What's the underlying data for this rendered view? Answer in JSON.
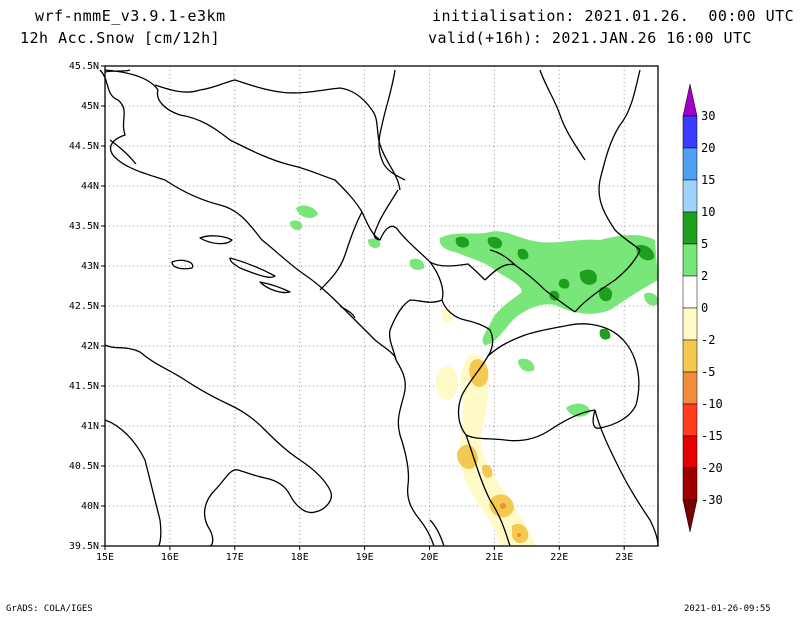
{
  "header": {
    "model": "wrf-nmmE_v3.9.1-e3km",
    "field": "12h Acc.Snow [cm/12h]",
    "init": "initialisation: 2021.01.26.  00:00 UTC",
    "valid": "valid(+16h): 2021.JAN.26 16:00 UTC"
  },
  "footer": {
    "left": "GrADS: COLA/IGES",
    "right": "2021-01-26-09:55"
  },
  "map": {
    "lat_labels": [
      "45.5N",
      "45N",
      "44.5N",
      "44N",
      "43.5N",
      "43N",
      "42.5N",
      "42N",
      "41.5N",
      "41N",
      "40.5N",
      "40N",
      "39.5N"
    ],
    "lon_labels": [
      "15E",
      "16E",
      "17E",
      "18E",
      "19E",
      "20E",
      "21E",
      "22E",
      "23E"
    ]
  },
  "colorbar": {
    "labels": [
      "30",
      "20",
      "15",
      "10",
      "5",
      "2",
      "0",
      "-2",
      "-5",
      "-10",
      "-15",
      "-20",
      "-30"
    ],
    "colors": [
      "#a000c8",
      "#3c3cff",
      "#509ff0",
      "#a0d2ff",
      "#1ea01e",
      "#78e678",
      "#ffffff",
      "#fffac8",
      "#f5c850",
      "#f08c3c",
      "#ff3c1e",
      "#e60000",
      "#a00000",
      "#780000"
    ]
  }
}
